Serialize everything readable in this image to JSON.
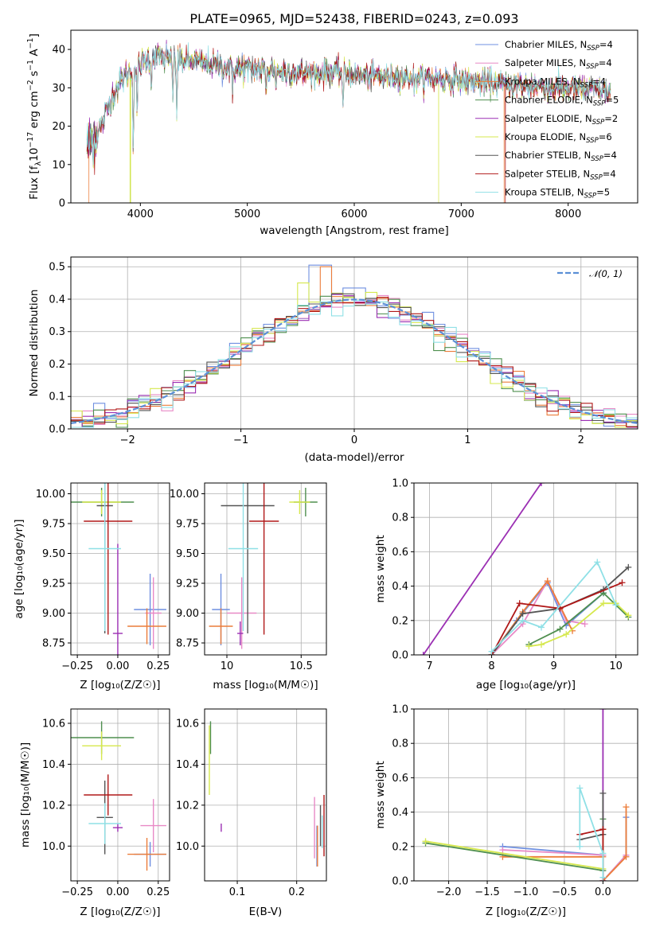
{
  "colors": {
    "chabrier_miles": "#6f8fe0",
    "salpeter_miles": "#e889c6",
    "kroupa_miles": "#ec7d3a",
    "chabrier_elodie": "#4f8f4f",
    "salpeter_elodie": "#9b2fb3",
    "kroupa_elodie": "#d6e84e",
    "chabrier_stelib": "#555555",
    "salpeter_stelib": "#b01818",
    "kroupa_stelib": "#8fe0e6",
    "normal_curve": "#5b8fd6",
    "grid": "#b0b0b0"
  },
  "chart_data": [
    {
      "id": "spectrum",
      "type": "line",
      "title": "PLATE=0965, MJD=52438, FIBERID=0243, z=0.093",
      "xlabel": "wavelength [Angstrom, rest frame]",
      "ylabel": "Flux [f_λ 10^-17 erg cm^-2 s^-1 A^-1]",
      "xlim": [
        3350,
        8650
      ],
      "ylim": [
        0,
        45
      ],
      "xticks": [
        4000,
        5000,
        6000,
        7000,
        8000
      ],
      "yticks": [
        0,
        10,
        20,
        30,
        40
      ],
      "legend_position": "top-right",
      "legend": [
        {
          "label": "Chabrier MILES, N",
          "sub": "SSP",
          "tail": "=4",
          "color_key": "chabrier_miles"
        },
        {
          "label": "Salpeter MILES, N",
          "sub": "SSP",
          "tail": "=4",
          "color_key": "salpeter_miles"
        },
        {
          "label": "Kroupa MILES, N",
          "sub": "SSP",
          "tail": "=4",
          "color_key": "kroupa_miles"
        },
        {
          "label": "Chabrier ELODIE, N",
          "sub": "SSP",
          "tail": "=5",
          "color_key": "chabrier_elodie"
        },
        {
          "label": "Salpeter ELODIE, N",
          "sub": "SSP",
          "tail": "=2",
          "color_key": "salpeter_elodie"
        },
        {
          "label": "Kroupa ELODIE, N",
          "sub": "SSP",
          "tail": "=6",
          "color_key": "kroupa_elodie"
        },
        {
          "label": "Chabrier STELIB, N",
          "sub": "SSP",
          "tail": "=4",
          "color_key": "chabrier_stelib"
        },
        {
          "label": "Salpeter STELIB, N",
          "sub": "SSP",
          "tail": "=4",
          "color_key": "salpeter_stelib"
        },
        {
          "label": "Kroupa STELIB, N",
          "sub": "SSP",
          "tail": "=5",
          "color_key": "kroupa_stelib"
        }
      ],
      "continuum": [
        [
          3500,
          15.5
        ],
        [
          3580,
          17
        ],
        [
          3650,
          21
        ],
        [
          3700,
          25
        ],
        [
          3750,
          29
        ],
        [
          3800,
          31
        ],
        [
          3850,
          33
        ],
        [
          3900,
          34
        ],
        [
          3950,
          35
        ],
        [
          4000,
          36
        ],
        [
          4100,
          38
        ],
        [
          4200,
          38.5
        ],
        [
          4300,
          37.5
        ],
        [
          4400,
          37
        ],
        [
          4500,
          37
        ],
        [
          4600,
          36.5
        ],
        [
          4700,
          36
        ],
        [
          4800,
          35.5
        ],
        [
          4900,
          35
        ],
        [
          5000,
          35
        ],
        [
          5200,
          34.5
        ],
        [
          5400,
          34
        ],
        [
          5600,
          34
        ],
        [
          5800,
          34
        ],
        [
          6000,
          33.5
        ],
        [
          6200,
          33
        ],
        [
          6400,
          33
        ],
        [
          6600,
          32.5
        ],
        [
          6800,
          32.5
        ],
        [
          7000,
          32
        ],
        [
          7200,
          31.5
        ],
        [
          7400,
          31
        ],
        [
          7600,
          30.5
        ],
        [
          7800,
          30
        ],
        [
          8000,
          30
        ],
        [
          8200,
          29.5
        ],
        [
          8400,
          29
        ]
      ],
      "absorption_lines": [
        [
          3934,
          20
        ],
        [
          3969,
          14
        ],
        [
          4102,
          8
        ],
        [
          4227,
          4
        ],
        [
          4305,
          10
        ],
        [
          4340,
          14
        ],
        [
          4861,
          8
        ],
        [
          5175,
          6
        ],
        [
          5270,
          3
        ],
        [
          5895,
          9
        ],
        [
          6563,
          4
        ],
        [
          7060,
          2
        ]
      ],
      "dropouts": [
        {
          "series": "kroupa_miles",
          "x": [
            3520,
            7400
          ]
        },
        {
          "series": "chabrier_elodie",
          "x": [
            3910
          ]
        },
        {
          "series": "kroupa_elodie",
          "x": [
            6790,
            3905
          ]
        },
        {
          "series": "salpeter_stelib",
          "x": [
            7410
          ]
        }
      ]
    },
    {
      "id": "residuals",
      "type": "line",
      "xlabel": "(data-model)/error",
      "ylabel": "Normed distribution",
      "xlim": [
        -2.5,
        2.5
      ],
      "ylim": [
        0,
        0.53
      ],
      "xticks": [
        -2,
        -1,
        0,
        1,
        2
      ],
      "yticks": [
        0.0,
        0.1,
        0.2,
        0.3,
        0.4,
        0.5
      ],
      "legend_position": "top-right",
      "legend": [
        {
          "label": "𝒩(0, 1)",
          "color_key": "normal_curve",
          "style": "dashed"
        }
      ],
      "bin_width": 0.1,
      "peaks": [
        {
          "series": "chabrier_miles",
          "values": [
            [
              -0.3,
              0.505
            ]
          ]
        },
        {
          "series": "kroupa_miles",
          "values": [
            [
              -0.25,
              0.5
            ]
          ]
        },
        {
          "series": "kroupa_elodie",
          "values": [
            [
              -0.45,
              0.45
            ]
          ]
        }
      ]
    },
    {
      "id": "age_vs_Z",
      "type": "scatter",
      "xlabel": "Z [log10(Z/Z☉)]",
      "ylabel": "age  [log10(age/yr)]",
      "xlim": [
        -0.29,
        0.32
      ],
      "ylim": [
        8.65,
        10.09
      ],
      "xticks": [
        -0.25,
        0.0,
        0.25
      ],
      "xtick_labels": [
        "−0.25",
        "0.00",
        "0.25"
      ],
      "yticks": [
        8.75,
        9.0,
        9.25,
        9.5,
        9.75,
        10.0
      ],
      "points": [
        {
          "series": "chabrier_miles",
          "x": 0.2,
          "y": 9.03,
          "xerr": 0.1,
          "yerr": 0.3
        },
        {
          "series": "salpeter_miles",
          "x": 0.22,
          "y": 9.0,
          "xerr": 0.05,
          "yerr": 0.3
        },
        {
          "series": "kroupa_miles",
          "x": 0.18,
          "y": 8.89,
          "xerr": 0.12,
          "yerr": 0.15
        },
        {
          "series": "chabrier_elodie",
          "x": -0.1,
          "y": 9.93,
          "xerr": 0.2,
          "yerr": 0.12
        },
        {
          "series": "salpeter_elodie",
          "x": 0.0,
          "y": 8.83,
          "xerr": 0.03,
          "yerr": 0.75
        },
        {
          "series": "kroupa_elodie",
          "x": -0.1,
          "y": 9.93,
          "xerr": 0.12,
          "yerr": 0.1
        },
        {
          "series": "chabrier_stelib",
          "x": -0.08,
          "y": 9.9,
          "xerr": 0.05,
          "yerr": 1.07
        },
        {
          "series": "salpeter_stelib",
          "x": -0.06,
          "y": 9.77,
          "xerr": 0.15,
          "yerr": 0.95
        },
        {
          "series": "kroupa_stelib",
          "x": -0.08,
          "y": 9.54,
          "xerr": 0.1,
          "yerr": 0.69
        }
      ]
    },
    {
      "id": "age_vs_mass",
      "type": "scatter",
      "xlabel": "mass [log10(M/M☉)]",
      "ylabel": "",
      "xlim": [
        9.85,
        10.67
      ],
      "ylim": [
        8.65,
        10.09
      ],
      "xticks": [
        10.0,
        10.5
      ],
      "yticks": [
        8.75,
        9.0,
        9.25,
        9.5,
        9.75,
        10.0
      ],
      "points": [
        {
          "series": "chabrier_miles",
          "x": 9.96,
          "y": 9.03,
          "xerr": 0.06,
          "yerr": 0.3
        },
        {
          "series": "salpeter_miles",
          "x": 10.1,
          "y": 9.0,
          "xerr": 0.1,
          "yerr": 0.3
        },
        {
          "series": "kroupa_miles",
          "x": 9.96,
          "y": 8.89,
          "xerr": 0.08,
          "yerr": 0.15
        },
        {
          "series": "chabrier_elodie",
          "x": 10.53,
          "y": 9.93,
          "xerr": 0.08,
          "yerr": 0.12
        },
        {
          "series": "salpeter_elodie",
          "x": 10.09,
          "y": 8.83,
          "xerr": 0.02,
          "yerr": 0.1
        },
        {
          "series": "kroupa_elodie",
          "x": 10.49,
          "y": 9.93,
          "xerr": 0.07,
          "yerr": 0.1
        },
        {
          "series": "chabrier_stelib",
          "x": 10.14,
          "y": 9.9,
          "xerr": 0.18,
          "yerr": 1.07
        },
        {
          "series": "salpeter_stelib",
          "x": 10.25,
          "y": 9.77,
          "xerr": 0.1,
          "yerr": 0.95
        },
        {
          "series": "kroupa_stelib",
          "x": 10.11,
          "y": 9.54,
          "xerr": 0.1,
          "yerr": 0.69
        }
      ]
    },
    {
      "id": "weight_vs_age",
      "type": "line",
      "xlabel": "age  [log10(age/yr)]",
      "ylabel": "mass weight",
      "xlim": [
        6.75,
        10.35
      ],
      "ylim": [
        0,
        1.0
      ],
      "xticks": [
        7,
        8,
        9,
        10
      ],
      "yticks": [
        0.0,
        0.2,
        0.4,
        0.6,
        0.8,
        1.0
      ],
      "series": [
        {
          "series": "chabrier_miles",
          "x": [
            8.0,
            8.4,
            8.9,
            9.2,
            9.8
          ],
          "y": [
            0.0,
            0.2,
            0.42,
            0.17,
            0.36
          ]
        },
        {
          "series": "salpeter_miles",
          "x": [
            8.0,
            8.5,
            8.9,
            9.2,
            9.5
          ],
          "y": [
            0.0,
            0.18,
            0.43,
            0.2,
            0.18
          ]
        },
        {
          "series": "kroupa_miles",
          "x": [
            8.0,
            8.5,
            8.9,
            9.3
          ],
          "y": [
            0.0,
            0.25,
            0.43,
            0.14
          ]
        },
        {
          "series": "chabrier_elodie",
          "x": [
            8.6,
            9.1,
            9.8,
            10.0,
            10.2
          ],
          "y": [
            0.06,
            0.15,
            0.36,
            0.29,
            0.22
          ]
        },
        {
          "series": "salpeter_elodie",
          "x": [
            6.9,
            8.8
          ],
          "y": [
            0.0,
            1.0
          ]
        },
        {
          "series": "kroupa_elodie",
          "x": [
            8.6,
            8.8,
            9.2,
            9.8,
            10.0,
            10.2
          ],
          "y": [
            0.05,
            0.06,
            0.12,
            0.3,
            0.3,
            0.23
          ]
        },
        {
          "series": "chabrier_stelib",
          "x": [
            8.0,
            8.5,
            9.1,
            9.8,
            10.2
          ],
          "y": [
            0.0,
            0.24,
            0.27,
            0.38,
            0.51
          ]
        },
        {
          "series": "salpeter_stelib",
          "x": [
            8.0,
            8.45,
            9.1,
            10.1
          ],
          "y": [
            0.0,
            0.3,
            0.27,
            0.42
          ]
        },
        {
          "series": "kroupa_stelib",
          "x": [
            8.0,
            8.5,
            8.8,
            9.7,
            10.0
          ],
          "y": [
            0.02,
            0.2,
            0.16,
            0.54,
            0.29
          ]
        }
      ]
    },
    {
      "id": "mass_vs_Z",
      "type": "scatter",
      "xlabel": "Z [log10(Z/Z☉)]",
      "ylabel": "mass [log10(M/M☉)]",
      "xlim": [
        -0.29,
        0.32
      ],
      "ylim": [
        9.83,
        10.67
      ],
      "xticks": [
        -0.25,
        0.0,
        0.25
      ],
      "xtick_labels": [
        "−0.25",
        "0.00",
        "0.25"
      ],
      "yticks": [
        10.0,
        10.2,
        10.4,
        10.6
      ],
      "points": [
        {
          "series": "chabrier_miles",
          "x": 0.2,
          "y": 9.96,
          "xerr": 0.1,
          "yerr": 0.06
        },
        {
          "series": "salpeter_miles",
          "x": 0.22,
          "y": 10.1,
          "xerr": 0.08,
          "yerr": 0.13
        },
        {
          "series": "kroupa_miles",
          "x": 0.18,
          "y": 9.96,
          "xerr": 0.12,
          "yerr": 0.08
        },
        {
          "series": "chabrier_elodie",
          "x": -0.1,
          "y": 10.53,
          "xerr": 0.2,
          "yerr": 0.08
        },
        {
          "series": "salpeter_elodie",
          "x": 0.0,
          "y": 10.09,
          "xerr": 0.03,
          "yerr": 0.02
        },
        {
          "series": "kroupa_elodie",
          "x": -0.1,
          "y": 10.49,
          "xerr": 0.12,
          "yerr": 0.07
        },
        {
          "series": "chabrier_stelib",
          "x": -0.08,
          "y": 10.14,
          "xerr": 0.05,
          "yerr": 0.18
        },
        {
          "series": "salpeter_stelib",
          "x": -0.06,
          "y": 10.25,
          "xerr": 0.15,
          "yerr": 0.1
        },
        {
          "series": "kroupa_stelib",
          "x": -0.08,
          "y": 10.11,
          "xerr": 0.1,
          "yerr": 0.1
        }
      ]
    },
    {
      "id": "mass_vs_ebv",
      "type": "scatter",
      "xlabel": "E(B-V)",
      "ylabel": "",
      "xlim": [
        0.045,
        0.25
      ],
      "ylim": [
        9.83,
        10.67
      ],
      "xticks": [
        0.1,
        0.2
      ],
      "yticks": [
        10.0,
        10.2,
        10.4,
        10.6
      ],
      "points": [
        {
          "series": "chabrier_miles",
          "x": 0.234,
          "y": 10.0,
          "yerr": 0.1
        },
        {
          "series": "salpeter_miles",
          "x": 0.23,
          "y": 10.09,
          "yerr": 0.15
        },
        {
          "series": "kroupa_miles",
          "x": 0.235,
          "y": 10.0,
          "yerr": 0.1
        },
        {
          "series": "chabrier_elodie",
          "x": 0.055,
          "y": 10.53,
          "yerr": 0.08
        },
        {
          "series": "salpeter_elodie",
          "x": 0.073,
          "y": 10.09,
          "yerr": 0.02
        },
        {
          "series": "kroupa_elodie",
          "x": 0.053,
          "y": 10.42,
          "yerr": 0.17
        },
        {
          "series": "chabrier_stelib",
          "x": 0.24,
          "y": 10.1,
          "yerr": 0.1
        },
        {
          "series": "salpeter_stelib",
          "x": 0.246,
          "y": 10.1,
          "yerr": 0.15
        },
        {
          "series": "kroupa_stelib",
          "x": 0.243,
          "y": 10.07,
          "yerr": 0.08
        }
      ]
    },
    {
      "id": "weight_vs_Z",
      "type": "line",
      "xlabel": "Z [log10(Z/Z☉)]",
      "ylabel": "mass weight",
      "xlim": [
        -2.45,
        0.45
      ],
      "ylim": [
        0,
        1.0
      ],
      "xticks": [
        -2.0,
        -1.5,
        -1.0,
        -0.5,
        0.0
      ],
      "xtick_labels": [
        "−2.0",
        "−1.5",
        "−1.0",
        "−0.5",
        "0.0"
      ],
      "yticks": [
        0.0,
        0.2,
        0.4,
        0.6,
        0.8,
        1.0
      ],
      "series": [
        {
          "series": "chabrier_miles",
          "x": [
            -1.3,
            0.0,
            0.0,
            0.3,
            0.3
          ],
          "y": [
            0.2,
            0.15,
            0.0,
            0.15,
            0.37
          ]
        },
        {
          "series": "salpeter_miles",
          "x": [
            -1.3,
            0.0,
            0.0,
            0.3
          ],
          "y": [
            0.18,
            0.15,
            0.0,
            0.15
          ]
        },
        {
          "series": "kroupa_miles",
          "x": [
            -1.3,
            0.0,
            0.0,
            0.3,
            0.3
          ],
          "y": [
            0.14,
            0.14,
            0.0,
            0.14,
            0.43
          ]
        },
        {
          "series": "chabrier_elodie",
          "x": [
            -2.3,
            0.0,
            0.0
          ],
          "y": [
            0.22,
            0.06,
            0.36
          ]
        },
        {
          "series": "salpeter_elodie",
          "x": [
            0.0,
            0.0
          ],
          "y": [
            0.0,
            1.0
          ]
        },
        {
          "series": "kroupa_elodie",
          "x": [
            -2.3,
            0.0,
            0.0
          ],
          "y": [
            0.23,
            0.07,
            0.3
          ]
        },
        {
          "series": "chabrier_stelib",
          "x": [
            -0.3,
            0.0,
            0.0
          ],
          "y": [
            0.24,
            0.27,
            0.51
          ]
        },
        {
          "series": "salpeter_stelib",
          "x": [
            -0.3,
            0.0,
            0.0
          ],
          "y": [
            0.27,
            0.3,
            0.0
          ]
        },
        {
          "series": "kroupa_stelib",
          "x": [
            -0.3,
            -0.3,
            0.0,
            0.0
          ],
          "y": [
            0.2,
            0.54,
            0.16,
            0.02
          ]
        }
      ]
    }
  ]
}
